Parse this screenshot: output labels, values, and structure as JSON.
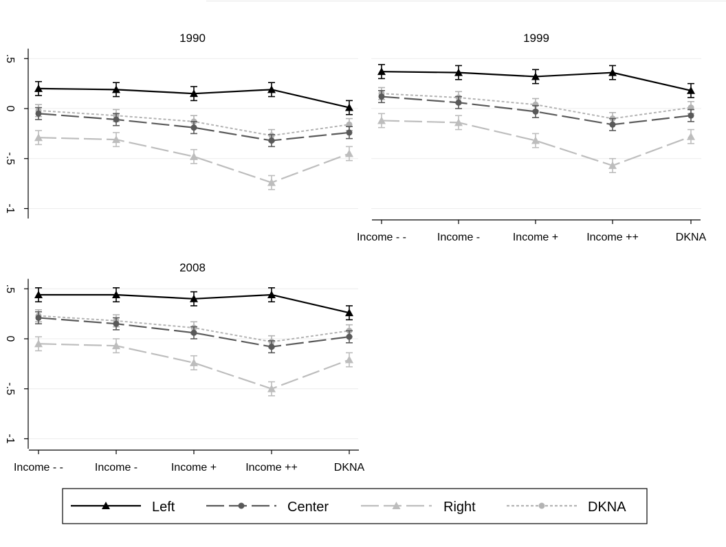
{
  "chart_data": [
    {
      "type": "line",
      "title": "1990",
      "categories": [
        "Income - -",
        "Income -",
        "Income +",
        "Income ++",
        "DKNA"
      ],
      "ylim": [
        -1.1,
        0.6
      ],
      "yticks": [
        -1,
        -0.5,
        0,
        0.5
      ],
      "ytick_labels": [
        "-1",
        "-.5",
        "0",
        ".5"
      ],
      "grid": true,
      "series": [
        {
          "name": "Left",
          "values": [
            0.2,
            0.19,
            0.15,
            0.19,
            0.01
          ],
          "errors": [
            0.07,
            0.07,
            0.07,
            0.07,
            0.07
          ]
        },
        {
          "name": "Center",
          "values": [
            -0.05,
            -0.11,
            -0.19,
            -0.32,
            -0.24
          ],
          "errors": [
            0.06,
            0.06,
            0.06,
            0.06,
            0.06
          ]
        },
        {
          "name": "Right",
          "values": [
            -0.29,
            -0.31,
            -0.48,
            -0.74,
            -0.45
          ],
          "errors": [
            0.07,
            0.07,
            0.07,
            0.07,
            0.07
          ]
        },
        {
          "name": "DKNA",
          "values": [
            -0.02,
            -0.07,
            -0.13,
            -0.27,
            -0.16
          ],
          "errors": [
            0.06,
            0.06,
            0.06,
            0.06,
            0.06
          ]
        }
      ]
    },
    {
      "type": "line",
      "title": "1999",
      "categories": [
        "Income - -",
        "Income -",
        "Income +",
        "Income ++",
        "DKNA"
      ],
      "ylim": [
        -1.1,
        0.6
      ],
      "yticks": [
        -1,
        -0.5,
        0,
        0.5
      ],
      "ytick_labels": [
        "-1",
        "-.5",
        "0",
        ".5"
      ],
      "grid": true,
      "series": [
        {
          "name": "Left",
          "values": [
            0.37,
            0.36,
            0.32,
            0.36,
            0.18
          ],
          "errors": [
            0.07,
            0.07,
            0.07,
            0.07,
            0.07
          ]
        },
        {
          "name": "Center",
          "values": [
            0.12,
            0.06,
            -0.03,
            -0.16,
            -0.07
          ],
          "errors": [
            0.06,
            0.06,
            0.06,
            0.06,
            0.06
          ]
        },
        {
          "name": "Right",
          "values": [
            -0.12,
            -0.14,
            -0.32,
            -0.57,
            -0.28
          ],
          "errors": [
            0.07,
            0.07,
            0.07,
            0.07,
            0.07
          ]
        },
        {
          "name": "DKNA",
          "values": [
            0.15,
            0.11,
            0.04,
            -0.1,
            0.01
          ],
          "errors": [
            0.06,
            0.06,
            0.06,
            0.06,
            0.06
          ]
        }
      ]
    },
    {
      "type": "line",
      "title": "2008",
      "categories": [
        "Income - -",
        "Income -",
        "Income +",
        "Income ++",
        "DKNA"
      ],
      "ylim": [
        -1.1,
        0.6
      ],
      "yticks": [
        -1,
        -0.5,
        0,
        0.5
      ],
      "ytick_labels": [
        "-1",
        "-.5",
        "0",
        ".5"
      ],
      "grid": true,
      "series": [
        {
          "name": "Left",
          "values": [
            0.44,
            0.44,
            0.4,
            0.44,
            0.26
          ],
          "errors": [
            0.07,
            0.07,
            0.07,
            0.07,
            0.07
          ]
        },
        {
          "name": "Center",
          "values": [
            0.21,
            0.15,
            0.06,
            -0.08,
            0.02
          ],
          "errors": [
            0.06,
            0.06,
            0.06,
            0.06,
            0.06
          ]
        },
        {
          "name": "Right",
          "values": [
            -0.05,
            -0.07,
            -0.24,
            -0.5,
            -0.21
          ],
          "errors": [
            0.07,
            0.07,
            0.07,
            0.07,
            0.07
          ]
        },
        {
          "name": "DKNA",
          "values": [
            0.23,
            0.18,
            0.11,
            -0.03,
            0.08
          ],
          "errors": [
            0.06,
            0.06,
            0.06,
            0.06,
            0.06
          ]
        }
      ]
    }
  ],
  "legend": {
    "position": "bottom",
    "items": [
      {
        "label": "Left",
        "color": "#000000",
        "marker": "triangle",
        "dash": "solid"
      },
      {
        "label": "Center",
        "color": "#595959",
        "marker": "circle",
        "dash": "long-dash"
      },
      {
        "label": "Right",
        "color": "#bdbdbd",
        "marker": "triangle",
        "dash": "long-dash"
      },
      {
        "label": "DKNA",
        "color": "#b3b3b3",
        "marker": "circle",
        "dash": "dotted"
      }
    ]
  }
}
